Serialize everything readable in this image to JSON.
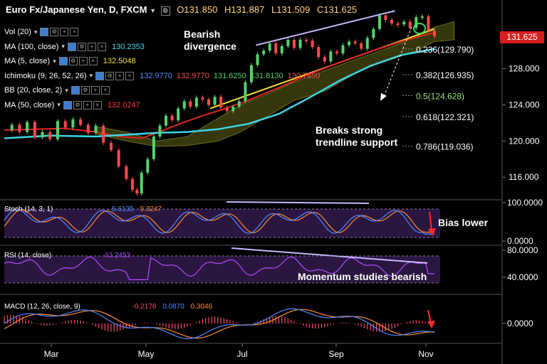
{
  "header": {
    "symbol": "Euro Fx/Japanese Yen, D, FXCM",
    "open": "O131.850",
    "high": "H131.887",
    "low": "L131.509",
    "close": "C131.625"
  },
  "indicators": [
    {
      "label": "Vol (20)",
      "value": "",
      "color": "#ffffff"
    },
    {
      "label": "MA (100, close)",
      "value": "130.2353",
      "color": "#4fd7e8"
    },
    {
      "label": "MA (5, close)",
      "value": "132.5048",
      "color": "#f5e23a"
    },
    {
      "label": "Ichimoku (9, 26, 52, 26)",
      "value": "132.9770",
      "value2": "132.9770",
      "value3": "131.6250",
      "value4": "131.8130",
      "value5": "130.7850",
      "color": "#4f8cff"
    },
    {
      "label": "BB (20, close, 2)",
      "value": "",
      "color": "#ffffff"
    },
    {
      "label": "MA (50, close)",
      "value": "132.0247",
      "color": "#ff3b3b"
    }
  ],
  "annotations": {
    "bearish": "Bearish",
    "divergence": "divergence",
    "breaks": "Breaks strong",
    "trendline": "trendline support",
    "bias": "Bias lower",
    "momentum": "Momentum studies bearish"
  },
  "fib_levels": [
    {
      "label": "0.236(129.790)",
      "value": 129.79,
      "color": "#ffffff"
    },
    {
      "label": "0.382(126.935)",
      "value": 126.935,
      "color": "#ffffff"
    },
    {
      "label": "0.5(124.628)",
      "value": 124.628,
      "color": "#9be07a"
    },
    {
      "label": "0.618(122.321)",
      "value": 122.321,
      "color": "#ffffff"
    },
    {
      "label": "0.786(119.036)",
      "value": 119.036,
      "color": "#ffffff"
    }
  ],
  "price_badge": "131.625",
  "stoch": {
    "label": "Stoch (14, 3, 1)",
    "k": "5.6135",
    "d": "9.3247",
    "ticks": [
      "100.0000",
      "0.0000"
    ]
  },
  "rsi": {
    "label": "RSI (14, close)",
    "value": "43.2453",
    "ticks": [
      "80.0000",
      "40.0000"
    ]
  },
  "macd": {
    "label": "MACD (12, 26, close, 9)",
    "hist": "-0.2176",
    "macd": "0.0870",
    "signal": "0.3046",
    "ticks": [
      "0.0000"
    ]
  },
  "chart_data": {
    "type": "line",
    "x_ticks": [
      "Mar",
      "May",
      "Jul",
      "Sep",
      "Nov"
    ],
    "y_ticks": [
      116,
      120,
      124,
      128
    ],
    "ylim": [
      113.5,
      134.5
    ],
    "price": [
      [
        0,
        121.2
      ],
      [
        5,
        121.8
      ],
      [
        10,
        121.0
      ],
      [
        15,
        122.1
      ],
      [
        20,
        120.4
      ],
      [
        25,
        121.0
      ],
      [
        30,
        120.2
      ],
      [
        35,
        122.2
      ],
      [
        40,
        121.5
      ],
      [
        45,
        122.4
      ],
      [
        50,
        121.8
      ],
      [
        55,
        120.9
      ],
      [
        60,
        121.7
      ],
      [
        65,
        119.8
      ],
      [
        70,
        119.0
      ],
      [
        75,
        117.2
      ],
      [
        80,
        115.8
      ],
      [
        84,
        114.6
      ],
      [
        87,
        114.2
      ],
      [
        90,
        116.5
      ],
      [
        94,
        118.0
      ],
      [
        98,
        120.5
      ],
      [
        102,
        121.7
      ],
      [
        106,
        122.8
      ],
      [
        110,
        122.3
      ],
      [
        114,
        123.6
      ],
      [
        118,
        124.4
      ],
      [
        122,
        123.8
      ],
      [
        126,
        124.8
      ],
      [
        130,
        124.6
      ],
      [
        134,
        124.0
      ],
      [
        138,
        124.9
      ],
      [
        142,
        123.7
      ],
      [
        146,
        123.3
      ],
      [
        150,
        123.8
      ],
      [
        154,
        124.4
      ],
      [
        158,
        126.5
      ],
      [
        162,
        128.4
      ],
      [
        166,
        129.6
      ],
      [
        170,
        130.0
      ],
      [
        174,
        130.8
      ],
      [
        178,
        129.7
      ],
      [
        182,
        130.5
      ],
      [
        186,
        131.2
      ],
      [
        190,
        130.3
      ],
      [
        194,
        131.2
      ],
      [
        198,
        131.1
      ],
      [
        202,
        130.4
      ],
      [
        206,
        129.3
      ],
      [
        210,
        128.8
      ],
      [
        214,
        129.9
      ],
      [
        218,
        129.7
      ],
      [
        222,
        130.6
      ],
      [
        226,
        131.0
      ],
      [
        230,
        130.8
      ],
      [
        234,
        130.2
      ],
      [
        238,
        131.4
      ],
      [
        242,
        132.4
      ],
      [
        246,
        133.9
      ],
      [
        250,
        133.4
      ],
      [
        254,
        133.0
      ],
      [
        258,
        132.9
      ],
      [
        262,
        133.2
      ],
      [
        266,
        132.5
      ],
      [
        270,
        133.7
      ],
      [
        274,
        133.8
      ],
      [
        278,
        132.2
      ],
      [
        282,
        131.6
      ]
    ],
    "ma100": [
      [
        0,
        120.3
      ],
      [
        30,
        120.6
      ],
      [
        60,
        120.5
      ],
      [
        80,
        120.7
      ],
      [
        100,
        120.9
      ],
      [
        120,
        121.0
      ],
      [
        140,
        121.3
      ],
      [
        160,
        121.9
      ],
      [
        180,
        123.0
      ],
      [
        200,
        124.8
      ],
      [
        220,
        126.7
      ],
      [
        240,
        128.3
      ],
      [
        260,
        129.5
      ],
      [
        282,
        130.2
      ]
    ],
    "ma50": [
      [
        0,
        121.2
      ],
      [
        20,
        121.3
      ],
      [
        40,
        121.4
      ],
      [
        60,
        121.0
      ],
      [
        75,
        120.5
      ],
      [
        90,
        120.3
      ],
      [
        100,
        120.9
      ],
      [
        115,
        121.9
      ],
      [
        130,
        122.8
      ],
      [
        145,
        123.6
      ],
      [
        160,
        124.5
      ],
      [
        180,
        125.9
      ],
      [
        200,
        127.4
      ],
      [
        220,
        128.7
      ],
      [
        240,
        129.9
      ],
      [
        260,
        131.0
      ],
      [
        282,
        132.0
      ]
    ],
    "trendline": [
      [
        135,
        123.6
      ],
      [
        282,
        132.4
      ]
    ],
    "divergence_line": [
      [
        165,
        130.6
      ],
      [
        256,
        134.4
      ]
    ],
    "series": [
      {
        "name": "MA (100, close)",
        "values": "ma100",
        "color": "#4fd7e8"
      },
      {
        "name": "MA (50, close)",
        "values": "ma50",
        "color": "#ff3b3b"
      }
    ],
    "xlabel": "",
    "ylabel": ""
  }
}
